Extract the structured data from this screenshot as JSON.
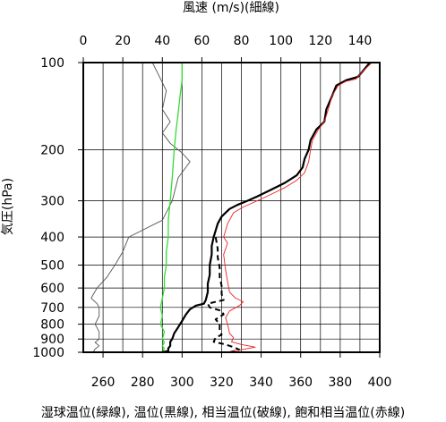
{
  "chart_data": {
    "type": "line",
    "title": "",
    "top_axis": {
      "label": "風速 (m/s)(細線)",
      "range": [
        0,
        150
      ],
      "ticks": [
        0,
        20,
        40,
        60,
        80,
        100,
        120,
        140
      ]
    },
    "bottom_axis": {
      "label": "湿球温位(緑線), 温位(黒線), 相当温位(破線), 飽和相当温位(赤線)",
      "range": [
        250,
        400
      ],
      "ticks": [
        260,
        280,
        300,
        320,
        340,
        360,
        380,
        400
      ]
    },
    "y_axis": {
      "label": "気圧(hPa)",
      "scale": "log",
      "reversed": true,
      "range": [
        1000,
        100
      ],
      "ticks": [
        100,
        200,
        300,
        400,
        500,
        600,
        700,
        800,
        900,
        1000
      ]
    },
    "grid": true,
    "colors": {
      "wind": "#555555",
      "wet_bulb": "#33dd33",
      "potential": "#000000",
      "equivalent": "#000000",
      "saturated": "#ee2222"
    },
    "series": [
      {
        "key": "wind",
        "axis": "top",
        "style": "thin",
        "points": [
          [
            5,
            1000
          ],
          [
            6,
            975
          ],
          [
            8,
            950
          ],
          [
            6,
            925
          ],
          [
            8,
            900
          ],
          [
            8,
            850
          ],
          [
            6,
            800
          ],
          [
            8,
            750
          ],
          [
            8,
            700
          ],
          [
            7,
            680
          ],
          [
            4,
            650
          ],
          [
            7,
            600
          ],
          [
            12,
            550
          ],
          [
            16,
            500
          ],
          [
            20,
            450
          ],
          [
            23,
            400
          ],
          [
            40,
            350
          ],
          [
            45,
            300
          ],
          [
            48,
            250
          ],
          [
            54,
            220
          ],
          [
            50,
            205
          ],
          [
            44,
            190
          ],
          [
            40,
            175
          ],
          [
            44,
            160
          ],
          [
            40,
            145
          ],
          [
            42,
            125
          ],
          [
            38,
            110
          ],
          [
            35,
            100
          ]
        ]
      },
      {
        "key": "wet_bulb",
        "axis": "bottom",
        "style": "solid",
        "points": [
          [
            290,
            1000
          ],
          [
            291,
            970
          ],
          [
            290,
            950
          ],
          [
            291,
            925
          ],
          [
            290,
            900
          ],
          [
            291,
            850
          ],
          [
            289,
            800
          ],
          [
            290,
            750
          ],
          [
            289,
            700
          ],
          [
            290,
            650
          ],
          [
            291,
            600
          ],
          [
            291,
            550
          ],
          [
            292,
            500
          ],
          [
            292,
            450
          ],
          [
            293,
            400
          ],
          [
            293,
            350
          ],
          [
            294,
            300
          ],
          [
            295,
            250
          ],
          [
            296,
            200
          ],
          [
            297,
            170
          ],
          [
            298,
            150
          ],
          [
            299,
            130
          ],
          [
            300,
            115
          ],
          [
            300,
            100
          ]
        ]
      },
      {
        "key": "potential",
        "axis": "bottom",
        "style": "thick",
        "points": [
          [
            290,
            1000
          ],
          [
            293,
            990
          ],
          [
            293,
            970
          ],
          [
            294,
            950
          ],
          [
            294,
            920
          ],
          [
            295,
            900
          ],
          [
            296,
            860
          ],
          [
            298,
            820
          ],
          [
            300,
            780
          ],
          [
            302,
            740
          ],
          [
            304,
            710
          ],
          [
            307,
            690
          ],
          [
            311,
            680
          ],
          [
            312,
            660
          ],
          [
            313,
            620
          ],
          [
            313,
            580
          ],
          [
            314,
            540
          ],
          [
            314,
            500
          ],
          [
            315,
            460
          ],
          [
            315,
            430
          ],
          [
            316,
            400
          ],
          [
            317,
            380
          ],
          [
            318,
            360
          ],
          [
            320,
            340
          ],
          [
            324,
            320
          ],
          [
            328,
            310
          ],
          [
            333,
            300
          ],
          [
            338,
            290
          ],
          [
            345,
            275
          ],
          [
            352,
            260
          ],
          [
            358,
            245
          ],
          [
            361,
            230
          ],
          [
            362,
            215
          ],
          [
            364,
            200
          ],
          [
            365,
            185
          ],
          [
            368,
            170
          ],
          [
            372,
            160
          ],
          [
            373,
            145
          ],
          [
            376,
            130
          ],
          [
            378,
            120
          ],
          [
            383,
            115
          ],
          [
            389,
            112
          ],
          [
            391,
            108
          ],
          [
            395,
            100
          ]
        ]
      },
      {
        "key": "equivalent",
        "axis": "bottom",
        "style": "dashed",
        "points": [
          [
            324,
            1000
          ],
          [
            329,
            980
          ],
          [
            326,
            960
          ],
          [
            322,
            940
          ],
          [
            316,
            920
          ],
          [
            317,
            890
          ],
          [
            320,
            870
          ],
          [
            319,
            840
          ],
          [
            319,
            800
          ],
          [
            317,
            770
          ],
          [
            321,
            740
          ],
          [
            320,
            720
          ],
          [
            314,
            700
          ],
          [
            313,
            680
          ],
          [
            321,
            660
          ],
          [
            320,
            630
          ],
          [
            320,
            590
          ],
          [
            319,
            550
          ],
          [
            319,
            510
          ],
          [
            318,
            470
          ],
          [
            318,
            440
          ],
          [
            317,
            400
          ]
        ]
      },
      {
        "key": "saturated",
        "axis": "bottom",
        "style": "thin",
        "points": [
          [
            323,
            1000
          ],
          [
            328,
            985
          ],
          [
            337,
            960
          ],
          [
            330,
            940
          ],
          [
            325,
            920
          ],
          [
            326,
            890
          ],
          [
            324,
            860
          ],
          [
            323,
            800
          ],
          [
            322,
            760
          ],
          [
            324,
            720
          ],
          [
            329,
            690
          ],
          [
            331,
            670
          ],
          [
            327,
            650
          ],
          [
            324,
            620
          ],
          [
            323,
            570
          ],
          [
            322,
            520
          ],
          [
            321,
            460
          ],
          [
            323,
            420
          ],
          [
            321,
            400
          ],
          [
            322,
            380
          ],
          [
            323,
            360
          ],
          [
            326,
            330
          ],
          [
            331,
            315
          ],
          [
            338,
            300
          ],
          [
            345,
            285
          ],
          [
            352,
            270
          ],
          [
            358,
            255
          ],
          [
            362,
            240
          ],
          [
            364,
            220
          ],
          [
            365,
            200
          ],
          [
            366,
            185
          ],
          [
            369,
            170
          ],
          [
            372,
            160
          ],
          [
            374,
            145
          ],
          [
            376,
            130
          ],
          [
            379,
            120
          ],
          [
            383,
            116
          ],
          [
            388,
            114
          ],
          [
            391,
            108
          ],
          [
            396,
            100
          ]
        ]
      }
    ]
  }
}
